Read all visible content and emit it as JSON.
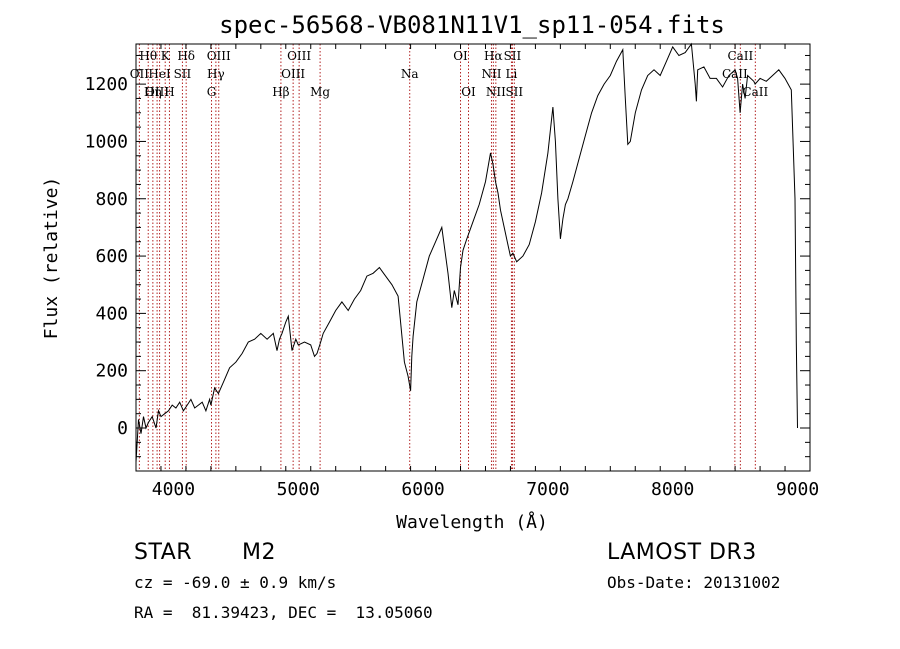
{
  "chart_data": {
    "type": "line",
    "title": "spec-56568-VB081N11V1_sp11-054.fits",
    "xlabel": "Wavelength (Å)",
    "ylabel": "Flux (relative)",
    "xlim": [
      3700,
      9100
    ],
    "ylim": [
      -150,
      1340
    ],
    "xticks": [
      4000,
      5000,
      6000,
      7000,
      8000,
      9000
    ],
    "yticks": [
      0,
      200,
      400,
      600,
      800,
      1000,
      1200
    ],
    "series": [
      {
        "name": "flux",
        "x": [
          3700,
          3720,
          3740,
          3760,
          3780,
          3800,
          3830,
          3860,
          3880,
          3900,
          3930,
          3960,
          3990,
          4020,
          4050,
          4080,
          4110,
          4140,
          4170,
          4200,
          4230,
          4260,
          4290,
          4300,
          4330,
          4360,
          4400,
          4450,
          4500,
          4550,
          4600,
          4650,
          4700,
          4750,
          4800,
          4830,
          4850,
          4870,
          4900,
          4920,
          4950,
          4980,
          5000,
          5050,
          5100,
          5130,
          5150,
          5180,
          5200,
          5250,
          5300,
          5350,
          5400,
          5450,
          5500,
          5550,
          5600,
          5650,
          5700,
          5750,
          5800,
          5850,
          5880,
          5900,
          5910,
          5920,
          5950,
          6000,
          6050,
          6100,
          6150,
          6200,
          6230,
          6250,
          6280,
          6300,
          6320,
          6350,
          6400,
          6450,
          6500,
          6540,
          6560,
          6580,
          6600,
          6620,
          6650,
          6680,
          6700,
          6720,
          6750,
          6800,
          6850,
          6900,
          6950,
          7000,
          7040,
          7060,
          7080,
          7100,
          7120,
          7140,
          7160,
          7200,
          7250,
          7300,
          7350,
          7400,
          7450,
          7500,
          7550,
          7600,
          7620,
          7640,
          7660,
          7700,
          7750,
          7800,
          7850,
          7900,
          7950,
          8000,
          8050,
          8100,
          8150,
          8180,
          8190,
          8200,
          8250,
          8300,
          8350,
          8400,
          8450,
          8500,
          8520,
          8540,
          8560,
          8580,
          8600,
          8650,
          8660,
          8700,
          8750,
          8800,
          8850,
          8900,
          8950,
          8980,
          8990,
          9000
        ],
        "values": [
          -120,
          30,
          -20,
          40,
          0,
          20,
          40,
          0,
          60,
          40,
          50,
          60,
          80,
          70,
          90,
          60,
          80,
          100,
          70,
          80,
          90,
          60,
          100,
          80,
          140,
          120,
          160,
          210,
          230,
          260,
          300,
          310,
          330,
          310,
          330,
          270,
          310,
          330,
          370,
          390,
          270,
          310,
          290,
          300,
          290,
          250,
          260,
          300,
          330,
          370,
          410,
          440,
          410,
          450,
          480,
          530,
          540,
          560,
          530,
          500,
          460,
          230,
          180,
          130,
          250,
          320,
          440,
          520,
          600,
          650,
          700,
          540,
          420,
          480,
          430,
          560,
          620,
          660,
          720,
          780,
          860,
          960,
          920,
          860,
          820,
          760,
          700,
          640,
          600,
          610,
          580,
          600,
          640,
          720,
          820,
          960,
          1120,
          1000,
          800,
          660,
          730,
          780,
          800,
          860,
          940,
          1020,
          1100,
          1160,
          1200,
          1230,
          1280,
          1320,
          1150,
          990,
          1000,
          1100,
          1180,
          1230,
          1250,
          1230,
          1280,
          1330,
          1300,
          1310,
          1340,
          1200,
          1140,
          1250,
          1260,
          1220,
          1220,
          1190,
          1230,
          1250,
          1220,
          1100,
          1200,
          1150,
          1230,
          1210,
          1200,
          1220,
          1210,
          1230,
          1250,
          1220,
          1180,
          800,
          300,
          0
        ]
      }
    ],
    "lines": [
      {
        "name": "Hθ",
        "x": 3798,
        "row": 0
      },
      {
        "name": "OII",
        "x": 3727,
        "row": 1
      },
      {
        "name": "OIII",
        "x": 3869,
        "row": 2
      },
      {
        "name": "Hη",
        "x": 3835,
        "row": 2
      },
      {
        "name": "K",
        "x": 3934,
        "row": 0
      },
      {
        "name": "HeI",
        "x": 3889,
        "row": 1
      },
      {
        "name": "H",
        "x": 3968,
        "row": 2
      },
      {
        "name": "Hδ",
        "x": 4102,
        "row": 0
      },
      {
        "name": "SII",
        "x": 4072,
        "row": 1
      },
      {
        "name": "OIII",
        "x": 4363,
        "row": 0
      },
      {
        "name": "Hγ",
        "x": 4340,
        "row": 1
      },
      {
        "name": "G",
        "x": 4305,
        "row": 2
      },
      {
        "name": "OIII",
        "x": 5007,
        "row": 0
      },
      {
        "name": "OIII",
        "x": 4959,
        "row": 1
      },
      {
        "name": "Hβ",
        "x": 4861,
        "row": 2
      },
      {
        "name": "Mg",
        "x": 5175,
        "row": 2
      },
      {
        "name": "Na",
        "x": 5893,
        "row": 1
      },
      {
        "name": "OI",
        "x": 6300,
        "row": 0
      },
      {
        "name": "OI",
        "x": 6364,
        "row": 2
      },
      {
        "name": "Hα",
        "x": 6563,
        "row": 0
      },
      {
        "name": "NII",
        "x": 6548,
        "row": 1
      },
      {
        "name": "NII",
        "x": 6583,
        "row": 2
      },
      {
        "name": "SII",
        "x": 6716,
        "row": 0
      },
      {
        "name": "Li",
        "x": 6708,
        "row": 1
      },
      {
        "name": "SII",
        "x": 6731,
        "row": 2
      },
      {
        "name": "CaII",
        "x": 8542,
        "row": 0
      },
      {
        "name": "CaII",
        "x": 8498,
        "row": 1
      },
      {
        "name": "CaII",
        "x": 8662,
        "row": 2
      }
    ]
  },
  "footer": {
    "object_type": "STAR",
    "subclass": "M2",
    "survey": "LAMOST DR3",
    "redshift": "cz = -69.0 ± 0.9 km/s",
    "obs_date": "Obs-Date: 20131002",
    "coords": "RA =  81.39423, DEC =  13.05060"
  },
  "colors": {
    "line_marker": "#b22222",
    "spectrum": "#000000",
    "axis": "#000000"
  }
}
